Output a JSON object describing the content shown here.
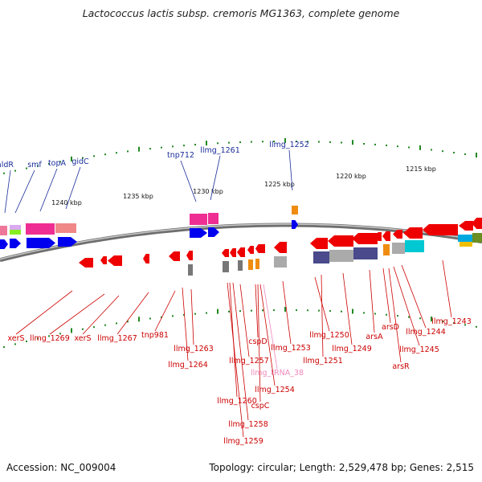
{
  "title": "Lactococcus lactis subsp. cremoris MG1363, complete genome",
  "footer": {
    "accession": "Accession: NC_009004",
    "topology": "Topology: circular; Length: 2,529,478 bp; Genes: 2,515"
  },
  "colors": {
    "forward_gene": "#0000ee",
    "reverse_gene": "#ee0000",
    "backbone": "#888888",
    "tick": "#228822",
    "blue_label": "#1a2d9a",
    "red_label": "#cc0000",
    "rna_label": "#ee88bb"
  },
  "kbp_ticks": [
    "1240 kbp",
    "1235 kbp",
    "1230 kbp",
    "1225 kbp",
    "1220 kbp",
    "1215 kbp"
  ],
  "top_labels": [
    "aldR",
    "smf",
    "topA",
    "gidC",
    "tnp712",
    "llmg_1261",
    "llmg_1252"
  ],
  "bottom_labels": [
    "xerS",
    "llmg_1269",
    "xerS",
    "llmg_1267",
    "tnp981",
    "llmg_1263",
    "llmg_1264",
    "llmg_1257",
    "llmg_1260",
    "llmg_1258",
    "llmg_1259",
    "cspD",
    "cspC",
    "llmg_tRNA_38",
    "llmg_1254",
    "llmg_1253",
    "llmg_1250",
    "llmg_1251",
    "llmg_1249",
    "arsA",
    "arsD",
    "arsR",
    "llmg_1245",
    "llmg_1244",
    "llmg_1243"
  ]
}
